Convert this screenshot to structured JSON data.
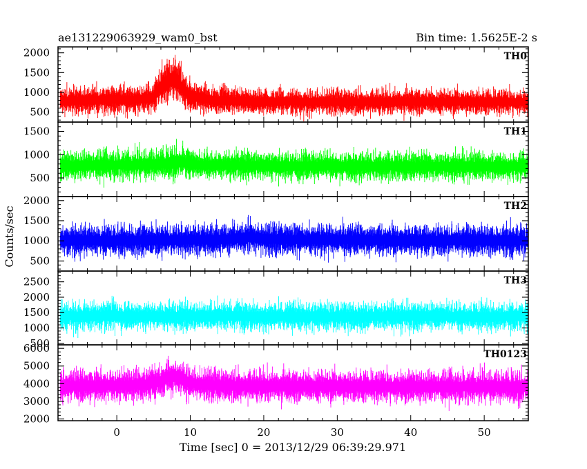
{
  "header": {
    "left": "ae131229063929_wam0_bst",
    "right": "Bin time: 1.5625E-2 s"
  },
  "chart_data": {
    "type": "line",
    "title": "ae131229063929_wam0_bst",
    "bin_time": "1.5625E-2 s",
    "xlabel": "Time [sec] 0 = 2013/12/29 06:39:29.971",
    "ylabel": "Counts/sec",
    "xlim": [
      -8,
      56
    ],
    "x_ticks": [
      0,
      10,
      20,
      30,
      40,
      50
    ],
    "grid": false,
    "legend": "none",
    "panels": [
      {
        "label": "TH0",
        "color": "#ff0000",
        "ylim": [
          250,
          2150
        ],
        "y_ticks": [
          500,
          1000,
          1500,
          2000
        ],
        "mean": 780,
        "spread": 260,
        "x": [
          -7,
          -4,
          -1,
          2,
          4,
          5,
          6,
          7,
          8,
          9,
          10,
          13,
          16,
          20,
          25,
          30,
          35,
          40,
          45,
          50,
          55
        ],
        "values": [
          790,
          800,
          820,
          810,
          830,
          900,
          1150,
          1300,
          1350,
          1080,
          920,
          800,
          780,
          770,
          760,
          760,
          760,
          770,
          760,
          760,
          760
        ]
      },
      {
        "label": "TH1",
        "color": "#00ff00",
        "ylim": [
          100,
          1700
        ],
        "y_ticks": [
          500,
          1000,
          1500
        ],
        "mean": 760,
        "spread": 240,
        "x": [
          -7,
          -4,
          -1,
          2,
          5,
          7,
          8,
          9,
          11,
          15,
          20,
          30,
          40,
          50,
          55
        ],
        "values": [
          760,
          770,
          780,
          780,
          790,
          820,
          860,
          830,
          780,
          770,
          760,
          750,
          750,
          750,
          750
        ]
      },
      {
        "label": "TH2",
        "color": "#0000ff",
        "ylim": [
          250,
          2100
        ],
        "y_ticks": [
          500,
          1000,
          1500,
          2000
        ],
        "mean": 1020,
        "spread": 300,
        "x": [
          -7,
          0,
          5,
          10,
          15,
          18,
          20,
          25,
          30,
          40,
          50,
          55
        ],
        "values": [
          1000,
          1010,
          1020,
          1020,
          1030,
          1090,
          1050,
          1020,
          1030,
          1010,
          1010,
          1000
        ]
      },
      {
        "label": "TH3",
        "color": "#00ffff",
        "ylim": [
          450,
          2850
        ],
        "y_ticks": [
          500,
          1000,
          1500,
          2000,
          2500
        ],
        "mean": 1380,
        "spread": 360,
        "x": [
          -7,
          0,
          10,
          20,
          30,
          40,
          50,
          55
        ],
        "values": [
          1380,
          1390,
          1390,
          1380,
          1370,
          1380,
          1370,
          1370
        ]
      },
      {
        "label": "TH0123",
        "color": "#ff00ff",
        "ylim": [
          1900,
          6200
        ],
        "y_ticks": [
          2000,
          3000,
          4000,
          5000,
          6000
        ],
        "mean": 3850,
        "spread": 700,
        "x": [
          -7,
          0,
          4,
          6,
          7,
          8,
          9,
          11,
          15,
          20,
          30,
          40,
          50,
          55
        ],
        "values": [
          3850,
          3900,
          3950,
          4150,
          4400,
          4450,
          4200,
          3950,
          3900,
          3880,
          3850,
          3840,
          3830,
          3830
        ]
      }
    ]
  }
}
